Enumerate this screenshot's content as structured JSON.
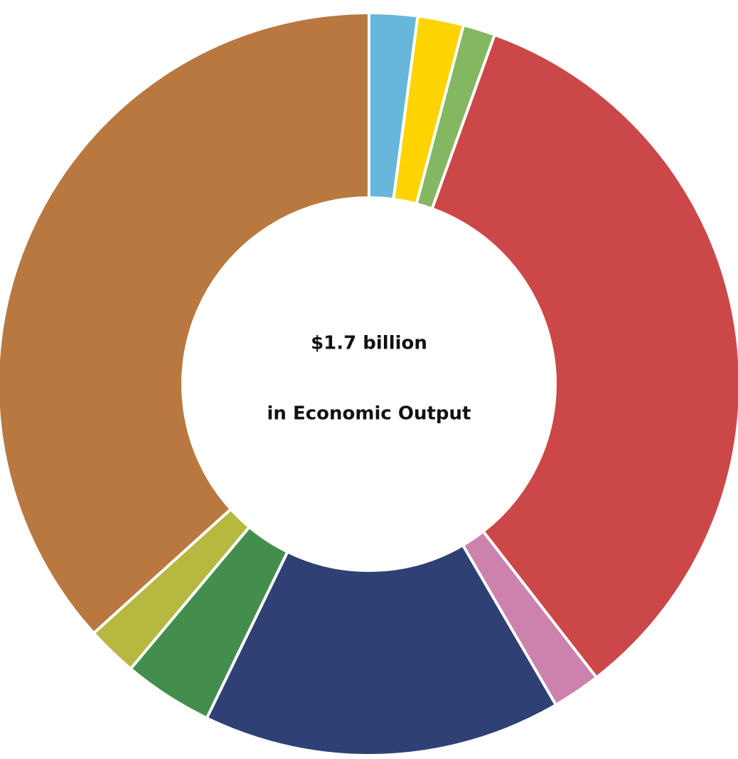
{
  "chart_data": {
    "type": "donut",
    "center_text": [
      "$1.7 billion",
      "in Economic Output"
    ],
    "values": [
      2.1,
      2.0,
      1.4,
      34.0,
      2.1,
      15.6,
      3.9,
      2.2,
      36.7
    ],
    "colors": [
      "#67b7dc",
      "#fdd400",
      "#84b761",
      "#cc4748",
      "#cd82ad",
      "#2f4074",
      "#448e4d",
      "#b7b83f",
      "#b9783f"
    ]
  }
}
